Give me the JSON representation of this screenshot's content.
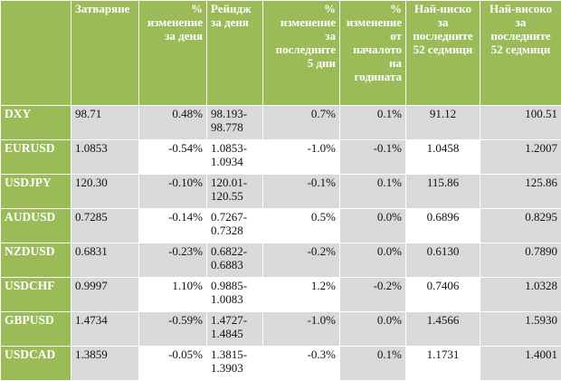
{
  "headers": {
    "close": "Затваряне",
    "day_change": "% изменение за деня",
    "day_range": "Рейндж за деня",
    "change_5d": "% изменение за последните 5 дни",
    "change_ytd": "% изменение от началото на годината",
    "low_52w": "Най-ниско за последните 52 седмици",
    "high_52w": "Най-високо за последните 52 седмици"
  },
  "rows": [
    {
      "symbol": "DXY",
      "close": "98.71",
      "day_change": "0.48%",
      "range_low": "98.193-",
      "range_high": "98.778",
      "change_5d": "0.7%",
      "change_ytd": "0.1%",
      "low_52w": "91.12",
      "high_52w": "100.51"
    },
    {
      "symbol": "EURUSD",
      "close": "1.0853",
      "day_change": "-0.54%",
      "range_low": "1.0853-",
      "range_high": "1.0934",
      "change_5d": "-1.0%",
      "change_ytd": "-0.1%",
      "low_52w": "1.0458",
      "high_52w": "1.2007"
    },
    {
      "symbol": "USDJPY",
      "close": "120.30",
      "day_change": "-0.10%",
      "range_low": "120.01-",
      "range_high": "120.55",
      "change_5d": "-0.1%",
      "change_ytd": "0.1%",
      "low_52w": "115.86",
      "high_52w": "125.86"
    },
    {
      "symbol": "AUDUSD",
      "close": "0.7285",
      "day_change": "-0.14%",
      "range_low": "0.7267-",
      "range_high": "0.7328",
      "change_5d": "0.5%",
      "change_ytd": "0.0%",
      "low_52w": "0.6896",
      "high_52w": "0.8295"
    },
    {
      "symbol": "NZDUSD",
      "close": "0.6831",
      "day_change": "-0.23%",
      "range_low": "0.6822-",
      "range_high": "0.6883",
      "change_5d": "-0.2%",
      "change_ytd": "0.0%",
      "low_52w": "0.6130",
      "high_52w": "0.7890"
    },
    {
      "symbol": "USDCHF",
      "close": "0.9997",
      "day_change": "1.10%",
      "range_low": "0.9885-",
      "range_high": "1.0083",
      "change_5d": "1.2%",
      "change_ytd": "-0.2%",
      "low_52w": "0.7406",
      "high_52w": "1.0328"
    },
    {
      "symbol": "GBPUSD",
      "close": "1.4734",
      "day_change": "-0.59%",
      "range_low": "1.4727-",
      "range_high": "1.4845",
      "change_5d": "-1.0%",
      "change_ytd": "0.0%",
      "low_52w": "1.4566",
      "high_52w": "1.5930"
    },
    {
      "symbol": "USDCAD",
      "close": "1.3859",
      "day_change": "-0.05%",
      "range_low": "1.3815-",
      "range_high": "1.3903",
      "change_5d": "-0.3%",
      "change_ytd": "0.1%",
      "low_52w": "1.1731",
      "high_52w": "1.4001"
    }
  ],
  "colors": {
    "header_green": "#9bbb59",
    "cell_gray": "#d9d9d9",
    "cell_white": "#ffffff"
  }
}
